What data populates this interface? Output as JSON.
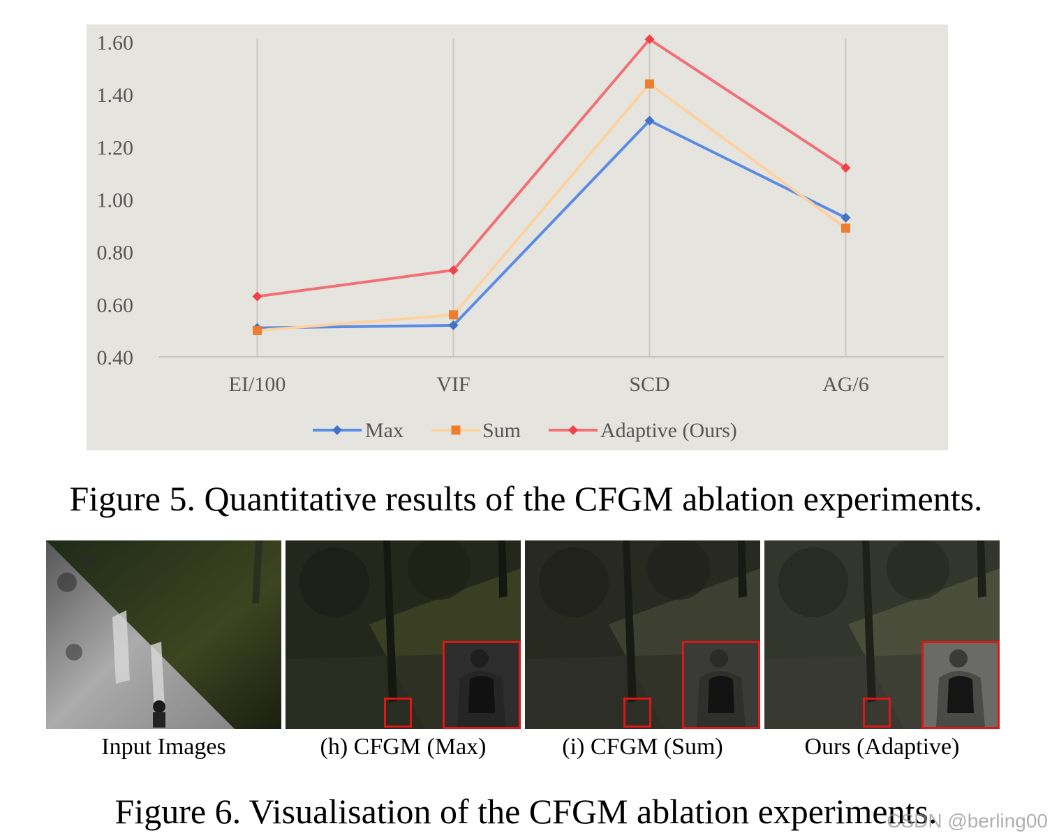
{
  "chart_data": {
    "type": "line",
    "categories": [
      "EI/100",
      "VIF",
      "SCD",
      "AG/6"
    ],
    "y_ticks": [
      "0.40",
      "0.60",
      "0.80",
      "1.00",
      "1.20",
      "1.40",
      "1.60"
    ],
    "ylim": [
      0.4,
      1.6
    ],
    "grid": "vertical lines at categories",
    "legend_position": "bottom",
    "series": [
      {
        "name": "Max",
        "color": "#5b8be6",
        "marker": "diamond",
        "marker_color": "#4472c4",
        "values": [
          0.51,
          0.52,
          1.3,
          0.93
        ]
      },
      {
        "name": "Sum",
        "color": "#fdd29e",
        "marker": "square",
        "marker_color": "#ed7d31",
        "values": [
          0.5,
          0.56,
          1.44,
          0.89
        ]
      },
      {
        "name": "Adaptive (Ours)",
        "color": "#f07074",
        "marker": "diamond",
        "marker_color": "#f0414a",
        "values": [
          0.63,
          0.73,
          1.61,
          1.12
        ]
      }
    ]
  },
  "captions": {
    "fig5": "Figure 5. Quantitative results of the CFGM ablation experiments.",
    "fig6": "Figure 6.  Visualisation of the CFGM ablation experiments."
  },
  "panels": {
    "input": "Input Images",
    "max": "(h) CFGM (Max)",
    "sum": "(i) CFGM (Sum)",
    "ours": "Ours (Adaptive)"
  },
  "colors": {
    "highlight_box": "#e01515",
    "chart_background": "#e6e4df"
  },
  "watermark": "CSDN @berling00"
}
